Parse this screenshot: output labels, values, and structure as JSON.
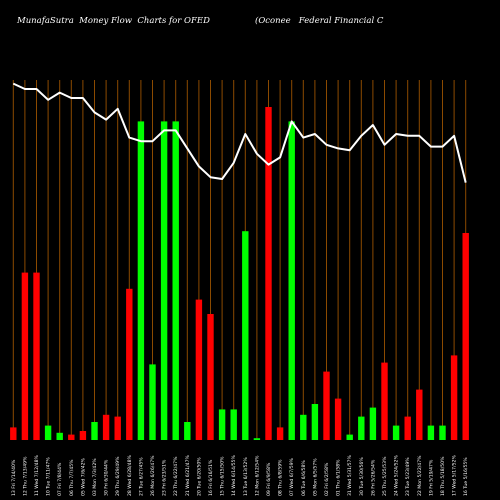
{
  "header": {
    "title_left": "MunafaSutra  Money Flow  Charts for OFED",
    "title_right": "(Oconee   Federal Financial C"
  },
  "colors": {
    "background": "#000000",
    "up": "#00ff00",
    "down": "#ff0000",
    "line": "#ffffff",
    "grid": "#8b4a00"
  },
  "chart_data": {
    "type": "bar",
    "title": "MunafaSutra  Money Flow  Charts for OFED (Oconee   Federal Financial C",
    "xlabel": "",
    "ylabel": "",
    "ylim": [
      0,
      100
    ],
    "grid": true,
    "categories": [
      "13 Fri 7/14/40%",
      "12 Thu 7/13/49%",
      "11 Wed 7/12/48%",
      "10 Tue 7/11/47%",
      "07 Fri 7/8/44%",
      "06 Thu 7/7/45%",
      "05 Wed 7/6/42%",
      "03 Mon 7/3/42%",
      "30 Fri 6/30/44%",
      "29 Thu 6/29/49%",
      "28 Wed 6/28/48%",
      "27 Tue 6/27/45%",
      "26 Mon 6/26/47%",
      "23 Fri 6/23/51%",
      "22 Thu 6/22/47%",
      "21 Wed 6/21/47%",
      "20 Tue 6/20/50%",
      "16 Fri 6/16/51%",
      "15 Thu 6/15/50%",
      "14 Wed 6/14/55%",
      "13 Tue 6/13/52%",
      "12 Mon 6/12/54%",
      "09 Fri 6/9/58%",
      "08 Thu 6/8/59%",
      "07 Wed 6/7/59%",
      "06 Tue 6/6/58%",
      "05 Mon 6/5/57%",
      "02 Fri 6/2/58%",
      "01 Thu 6/1/58%",
      "31 Wed 5/31/57%",
      "30 Tue 5/30/56%",
      "26 Fri 5/26/54%",
      "25 Thu 5/25/53%",
      "24 Wed 5/24/52%",
      "23 Tue 5/23/49%",
      "22 Mon 5/22/47%",
      "19 Fri 5/19/47%",
      "18 Thu 5/18/50%",
      "17 Wed 5/17/52%",
      "16 Tue 5/16/55%"
    ],
    "series": [
      {
        "type": "bar",
        "values": [
          3.5,
          46.5,
          46.5,
          4,
          2,
          1.5,
          2.5,
          5,
          7,
          6.5,
          42,
          88.5,
          21,
          88.5,
          88.5,
          5,
          39,
          35,
          8.5,
          8.5,
          58,
          0.5,
          92.5,
          3.5,
          88.5,
          7,
          10,
          19,
          11.5,
          1.5,
          6.5,
          9,
          21.5,
          4,
          6.5,
          14,
          4,
          4,
          23.5,
          57.5
        ],
        "colors": [
          "red",
          "red",
          "red",
          "green",
          "green",
          "red",
          "red",
          "green",
          "red",
          "red",
          "red",
          "green",
          "green",
          "green",
          "green",
          "green",
          "red",
          "red",
          "green",
          "green",
          "green",
          "green",
          "red",
          "red",
          "green",
          "green",
          "green",
          "red",
          "red",
          "green",
          "green",
          "green",
          "red",
          "green",
          "red",
          "red",
          "green",
          "green",
          "red",
          "red"
        ]
      },
      {
        "type": "line",
        "values": [
          99,
          97.5,
          97.5,
          94.5,
          96.5,
          95,
          95,
          91,
          89,
          92,
          84,
          83,
          83,
          86,
          86,
          81,
          76,
          73,
          72.5,
          77,
          85,
          79.5,
          76.5,
          78.5,
          88.5,
          84,
          85,
          82,
          81,
          80.5,
          84.5,
          87.5,
          82,
          85,
          84.5,
          84.5,
          81.5,
          81.5,
          84.5,
          71.5
        ]
      }
    ]
  }
}
